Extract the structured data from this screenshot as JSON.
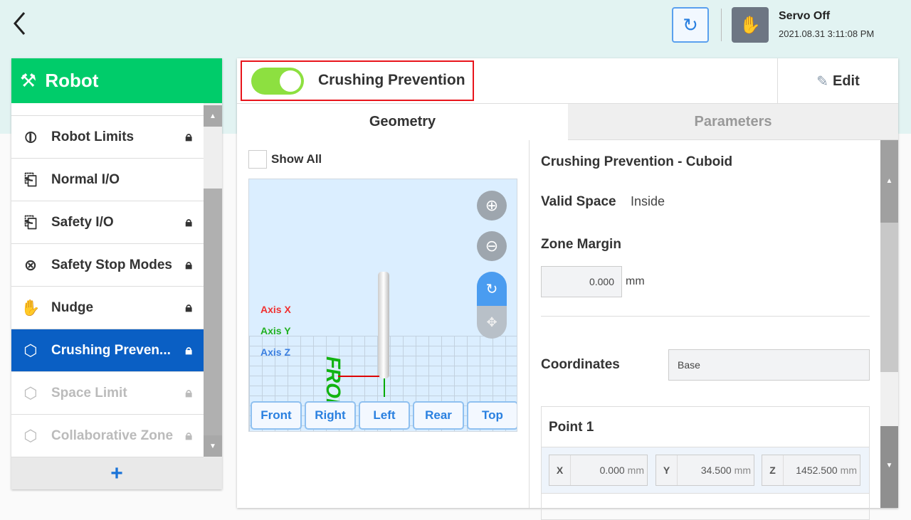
{
  "topbar": {
    "back_icon": "chevron-left-icon",
    "sync_icon": "sync-icon",
    "servo_icon": "hand-icon",
    "servo_status": "Servo Off",
    "datetime": "2021.08.31 3:11:08 PM"
  },
  "sidebar": {
    "title": "Robot",
    "add_label": "+",
    "items": [
      {
        "label": "Robot Limits",
        "icon": "gauge-icon",
        "locked": true,
        "state": "normal"
      },
      {
        "label": "Normal I/O",
        "icon": "io-icon",
        "locked": false,
        "state": "normal"
      },
      {
        "label": "Safety I/O",
        "icon": "io-icon",
        "locked": true,
        "state": "normal"
      },
      {
        "label": "Safety Stop Modes",
        "icon": "stop-circle-icon",
        "locked": true,
        "state": "normal"
      },
      {
        "label": "Nudge",
        "icon": "hand-icon",
        "locked": true,
        "state": "normal"
      },
      {
        "label": "Crushing Preven...",
        "icon": "cube-icon",
        "locked": true,
        "state": "selected"
      },
      {
        "label": "Space Limit",
        "icon": "cube-icon",
        "locked": true,
        "state": "disabled"
      },
      {
        "label": "Collaborative Zone",
        "icon": "cube-icon",
        "locked": true,
        "state": "disabled"
      }
    ]
  },
  "header": {
    "title": "Crushing Prevention",
    "toggle_on": true,
    "edit_label": "Edit",
    "accent": "#8de040"
  },
  "tabs": [
    {
      "label": "Geometry",
      "active": true
    },
    {
      "label": "Parameters",
      "active": false
    }
  ],
  "viewer": {
    "show_all_label": "Show All",
    "show_all_checked": false,
    "axis_x": "Axis X",
    "axis_y": "Axis Y",
    "axis_z": "Axis Z",
    "front_text": "FRONT",
    "views": [
      "Front",
      "Right",
      "Left",
      "Rear",
      "Top"
    ]
  },
  "details": {
    "heading": "Crushing Prevention - Cuboid",
    "valid_space_label": "Valid Space",
    "valid_space_value": "Inside",
    "zone_margin_label": "Zone Margin",
    "zone_margin_value": "0.000",
    "zone_margin_unit": "mm",
    "coordinates_label": "Coordinates",
    "coordinates_value": "Base",
    "point1": {
      "title": "Point 1",
      "x_label": "X",
      "x": "0.000",
      "y_label": "Y",
      "y": "34.500",
      "z_label": "Z",
      "z": "1452.500",
      "unit": "mm"
    }
  }
}
